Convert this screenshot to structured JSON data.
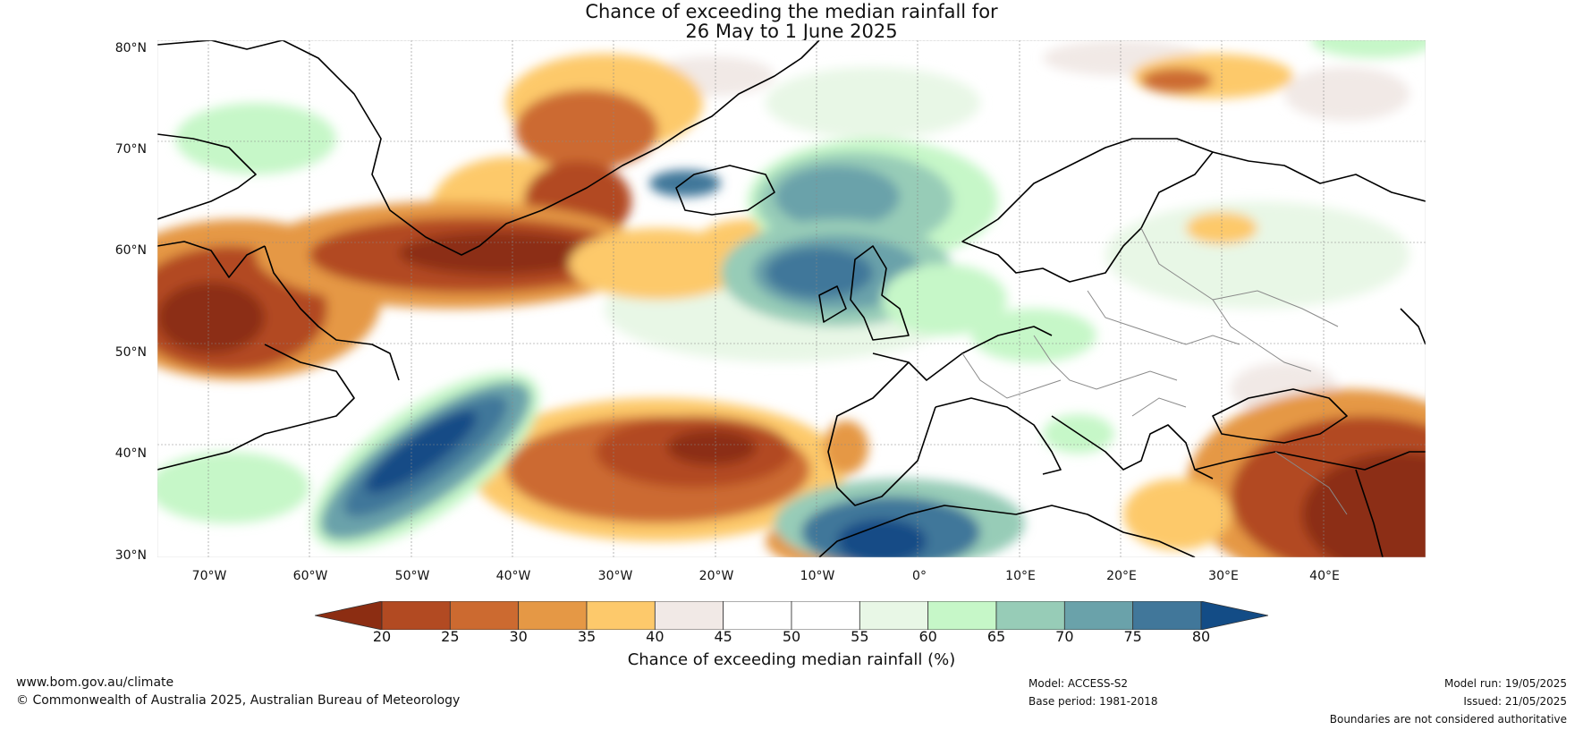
{
  "title": {
    "line1": "Chance of exceeding the median rainfall for",
    "line2": "26 May to 1 June 2025"
  },
  "map": {
    "lat_labels": [
      "80°N",
      "70°N",
      "60°N",
      "50°N",
      "40°N",
      "30°N"
    ],
    "lon_labels": [
      "70°W",
      "60°W",
      "50°W",
      "40°W",
      "30°W",
      "20°W",
      "10°W",
      "0°",
      "10°E",
      "20°E",
      "30°E",
      "40°E"
    ]
  },
  "colorbar": {
    "labels": [
      "20",
      "25",
      "30",
      "35",
      "40",
      "45",
      "50",
      "55",
      "60",
      "65",
      "70",
      "75",
      "80"
    ],
    "colors": [
      "#8c2d12",
      "#b24a22",
      "#cc6a30",
      "#e59845",
      "#fdc96b",
      "#f1e9e6",
      "#ffffff",
      "#ffffff",
      "#e8f7e6",
      "#c6f7c8",
      "#97ccb7",
      "#6aa2aa",
      "#41779a",
      "#134c86"
    ],
    "title": "Chance of exceeding median rainfall (%)"
  },
  "footer": {
    "website": "www.bom.gov.au/climate",
    "copyright": "© Commonwealth of Australia 2025, Australian Bureau of Meteorology",
    "model": "Model: ACCESS-S2",
    "base_period": "Base period: 1981-2018",
    "model_run": "Model run: 19/05/2025",
    "issued": "Issued: 21/05/2025",
    "disclaimer": "Boundaries are not considered authoritative"
  }
}
